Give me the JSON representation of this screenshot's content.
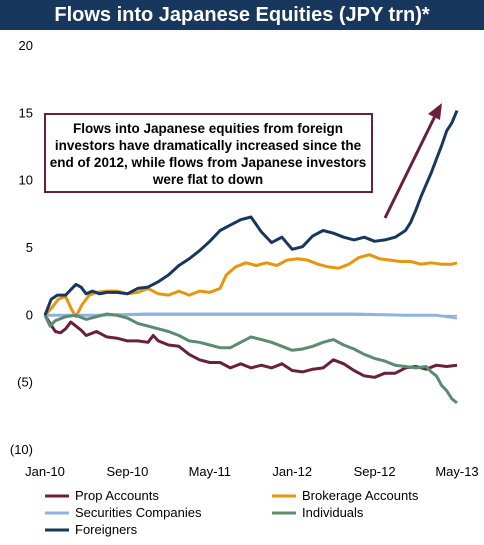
{
  "chart_data": {
    "type": "line",
    "title": "Flows into Japanese Equities (JPY trn)*",
    "ylim": [
      -10,
      20
    ],
    "yticks": [
      20,
      15,
      10,
      5,
      0,
      -5,
      -10
    ],
    "ytick_labels": [
      "20",
      "15",
      "10",
      "5",
      "0",
      "(5)",
      "(10)"
    ],
    "xlim": [
      0,
      40
    ],
    "xticks": [
      0,
      8,
      16,
      24,
      32,
      40
    ],
    "xtick_labels": [
      "Jan-10",
      "Sep-10",
      "May-11",
      "Jan-12",
      "Sep-12",
      "May-13"
    ],
    "legend_placement": "bottom",
    "annotation": {
      "lines": [
        "Flows into Japanese equities from foreign",
        "investors have dramatically increased since the",
        "end of 2012, while flows from Japanese investors",
        "were flat to down"
      ]
    },
    "series": [
      {
        "name": "Prop Accounts",
        "color": "#6b1f3a",
        "points": [
          [
            0,
            0
          ],
          [
            0.5,
            -0.6
          ],
          [
            1,
            -1.2
          ],
          [
            1.5,
            -1.3
          ],
          [
            2,
            -1
          ],
          [
            2.5,
            -0.5
          ],
          [
            3,
            -0.8
          ],
          [
            3.5,
            -1.1
          ],
          [
            4,
            -1.5
          ],
          [
            5,
            -1.2
          ],
          [
            6,
            -1.6
          ],
          [
            7,
            -1.7
          ],
          [
            8,
            -1.9
          ],
          [
            9,
            -1.9
          ],
          [
            10,
            -2
          ],
          [
            10.5,
            -1.5
          ],
          [
            11,
            -1.9
          ],
          [
            12,
            -2.2
          ],
          [
            13,
            -2.3
          ],
          [
            14,
            -2.9
          ],
          [
            15,
            -3.3
          ],
          [
            16,
            -3.5
          ],
          [
            17,
            -3.5
          ],
          [
            18,
            -3.9
          ],
          [
            19,
            -3.6
          ],
          [
            20,
            -3.9
          ],
          [
            21,
            -3.7
          ],
          [
            22,
            -3.9
          ],
          [
            23,
            -3.6
          ],
          [
            24,
            -4.1
          ],
          [
            25,
            -4.2
          ],
          [
            26,
            -4
          ],
          [
            27,
            -3.9
          ],
          [
            28,
            -3.3
          ],
          [
            29,
            -3.6
          ],
          [
            30,
            -4.1
          ],
          [
            31,
            -4.5
          ],
          [
            32,
            -4.6
          ],
          [
            33,
            -4.3
          ],
          [
            34,
            -4.3
          ],
          [
            35,
            -3.9
          ],
          [
            36,
            -3.8
          ],
          [
            37,
            -4
          ],
          [
            38,
            -3.7
          ],
          [
            39,
            -3.8
          ],
          [
            40,
            -3.7
          ]
        ]
      },
      {
        "name": "Brokerage Accounts",
        "color": "#e8950e",
        "points": [
          [
            0,
            0
          ],
          [
            0.7,
            0.6
          ],
          [
            1.3,
            1.2
          ],
          [
            2,
            1.4
          ],
          [
            2.6,
            0.4
          ],
          [
            3,
            -0.1
          ],
          [
            3.6,
            0.8
          ],
          [
            4.3,
            1.5
          ],
          [
            5,
            1.7
          ],
          [
            6,
            1.8
          ],
          [
            7,
            1.8
          ],
          [
            8,
            1.6
          ],
          [
            9,
            1.7
          ],
          [
            10,
            2
          ],
          [
            11,
            1.6
          ],
          [
            12,
            1.5
          ],
          [
            13,
            1.8
          ],
          [
            14,
            1.5
          ],
          [
            15,
            1.8
          ],
          [
            16,
            1.7
          ],
          [
            17,
            2
          ],
          [
            17.6,
            3
          ],
          [
            18.5,
            3.6
          ],
          [
            19.5,
            3.9
          ],
          [
            20.5,
            3.7
          ],
          [
            21.5,
            3.9
          ],
          [
            22.5,
            3.7
          ],
          [
            23.5,
            4.1
          ],
          [
            24.5,
            4.2
          ],
          [
            25.5,
            4.1
          ],
          [
            26.5,
            3.8
          ],
          [
            27.5,
            3.6
          ],
          [
            28.5,
            3.5
          ],
          [
            29.5,
            3.8
          ],
          [
            30.5,
            4.3
          ],
          [
            31.5,
            4.5
          ],
          [
            32.5,
            4.2
          ],
          [
            33.5,
            4.1
          ],
          [
            34.5,
            4
          ],
          [
            35.5,
            4
          ],
          [
            36.5,
            3.8
          ],
          [
            37.5,
            3.9
          ],
          [
            38.5,
            3.8
          ],
          [
            39.5,
            3.8
          ],
          [
            40,
            3.9
          ]
        ]
      },
      {
        "name": "Securities Companies",
        "color": "#8db3e2",
        "points": [
          [
            0,
            0
          ],
          [
            5,
            0
          ],
          [
            10,
            0.1
          ],
          [
            15,
            0.1
          ],
          [
            20,
            0.1
          ],
          [
            25,
            0.1
          ],
          [
            30,
            0.1
          ],
          [
            35,
            0
          ],
          [
            38,
            0
          ],
          [
            39,
            -0.1
          ],
          [
            40,
            -0.2
          ]
        ]
      },
      {
        "name": "Individuals",
        "color": "#5b8c6e",
        "points": [
          [
            0,
            0
          ],
          [
            0.5,
            -0.8
          ],
          [
            1,
            -0.4
          ],
          [
            2,
            -0.1
          ],
          [
            3,
            0
          ],
          [
            4,
            -0.3
          ],
          [
            5,
            -0.1
          ],
          [
            6,
            0.1
          ],
          [
            7,
            0
          ],
          [
            8,
            -0.2
          ],
          [
            9,
            -0.6
          ],
          [
            10,
            -0.8
          ],
          [
            11,
            -1
          ],
          [
            12,
            -1.2
          ],
          [
            13,
            -1.5
          ],
          [
            14,
            -1.9
          ],
          [
            15,
            -2
          ],
          [
            16,
            -2.2
          ],
          [
            17,
            -2.4
          ],
          [
            18,
            -2.4
          ],
          [
            19,
            -2
          ],
          [
            20,
            -1.6
          ],
          [
            21,
            -1.8
          ],
          [
            22,
            -2
          ],
          [
            23,
            -2.3
          ],
          [
            24,
            -2.6
          ],
          [
            25,
            -2.5
          ],
          [
            26,
            -2.3
          ],
          [
            27,
            -2
          ],
          [
            28,
            -1.8
          ],
          [
            29,
            -2.2
          ],
          [
            30,
            -2.5
          ],
          [
            31,
            -2.9
          ],
          [
            32,
            -3.2
          ],
          [
            33,
            -3.4
          ],
          [
            34,
            -3.7
          ],
          [
            35,
            -3.8
          ],
          [
            36,
            -3.9
          ],
          [
            37,
            -3.8
          ],
          [
            37.5,
            -4.2
          ],
          [
            38,
            -4.5
          ],
          [
            38.5,
            -5.2
          ],
          [
            39,
            -5.6
          ],
          [
            39.5,
            -6.2
          ],
          [
            40,
            -6.5
          ]
        ]
      },
      {
        "name": "Foreigners",
        "color": "#17375e",
        "points": [
          [
            0,
            0
          ],
          [
            0.6,
            1.2
          ],
          [
            1.2,
            1.5
          ],
          [
            2,
            1.5
          ],
          [
            2.5,
            1.9
          ],
          [
            3,
            2.3
          ],
          [
            3.5,
            2.1
          ],
          [
            4,
            1.6
          ],
          [
            4.6,
            1.8
          ],
          [
            5.3,
            1.6
          ],
          [
            6,
            1.7
          ],
          [
            7,
            1.7
          ],
          [
            8,
            1.6
          ],
          [
            9,
            2
          ],
          [
            10,
            2.1
          ],
          [
            11,
            2.5
          ],
          [
            12,
            3
          ],
          [
            13,
            3.7
          ],
          [
            14,
            4.2
          ],
          [
            15,
            4.8
          ],
          [
            16,
            5.5
          ],
          [
            17,
            6.3
          ],
          [
            18,
            6.7
          ],
          [
            19,
            7.1
          ],
          [
            20,
            7.3
          ],
          [
            21,
            6.2
          ],
          [
            22,
            5.4
          ],
          [
            23,
            5.8
          ],
          [
            24,
            4.9
          ],
          [
            25,
            5.1
          ],
          [
            26,
            5.9
          ],
          [
            27,
            6.3
          ],
          [
            28,
            6.1
          ],
          [
            29,
            5.8
          ],
          [
            30,
            5.6
          ],
          [
            31,
            5.8
          ],
          [
            32,
            5.5
          ],
          [
            33,
            5.6
          ],
          [
            34,
            5.8
          ],
          [
            35,
            6.3
          ],
          [
            35.5,
            6.9
          ],
          [
            36,
            7.8
          ],
          [
            36.5,
            8.8
          ],
          [
            37,
            9.7
          ],
          [
            37.5,
            10.6
          ],
          [
            38,
            11.6
          ],
          [
            38.5,
            12.6
          ],
          [
            39,
            13.7
          ],
          [
            39.5,
            14.3
          ],
          [
            40,
            15.2
          ]
        ]
      }
    ]
  }
}
